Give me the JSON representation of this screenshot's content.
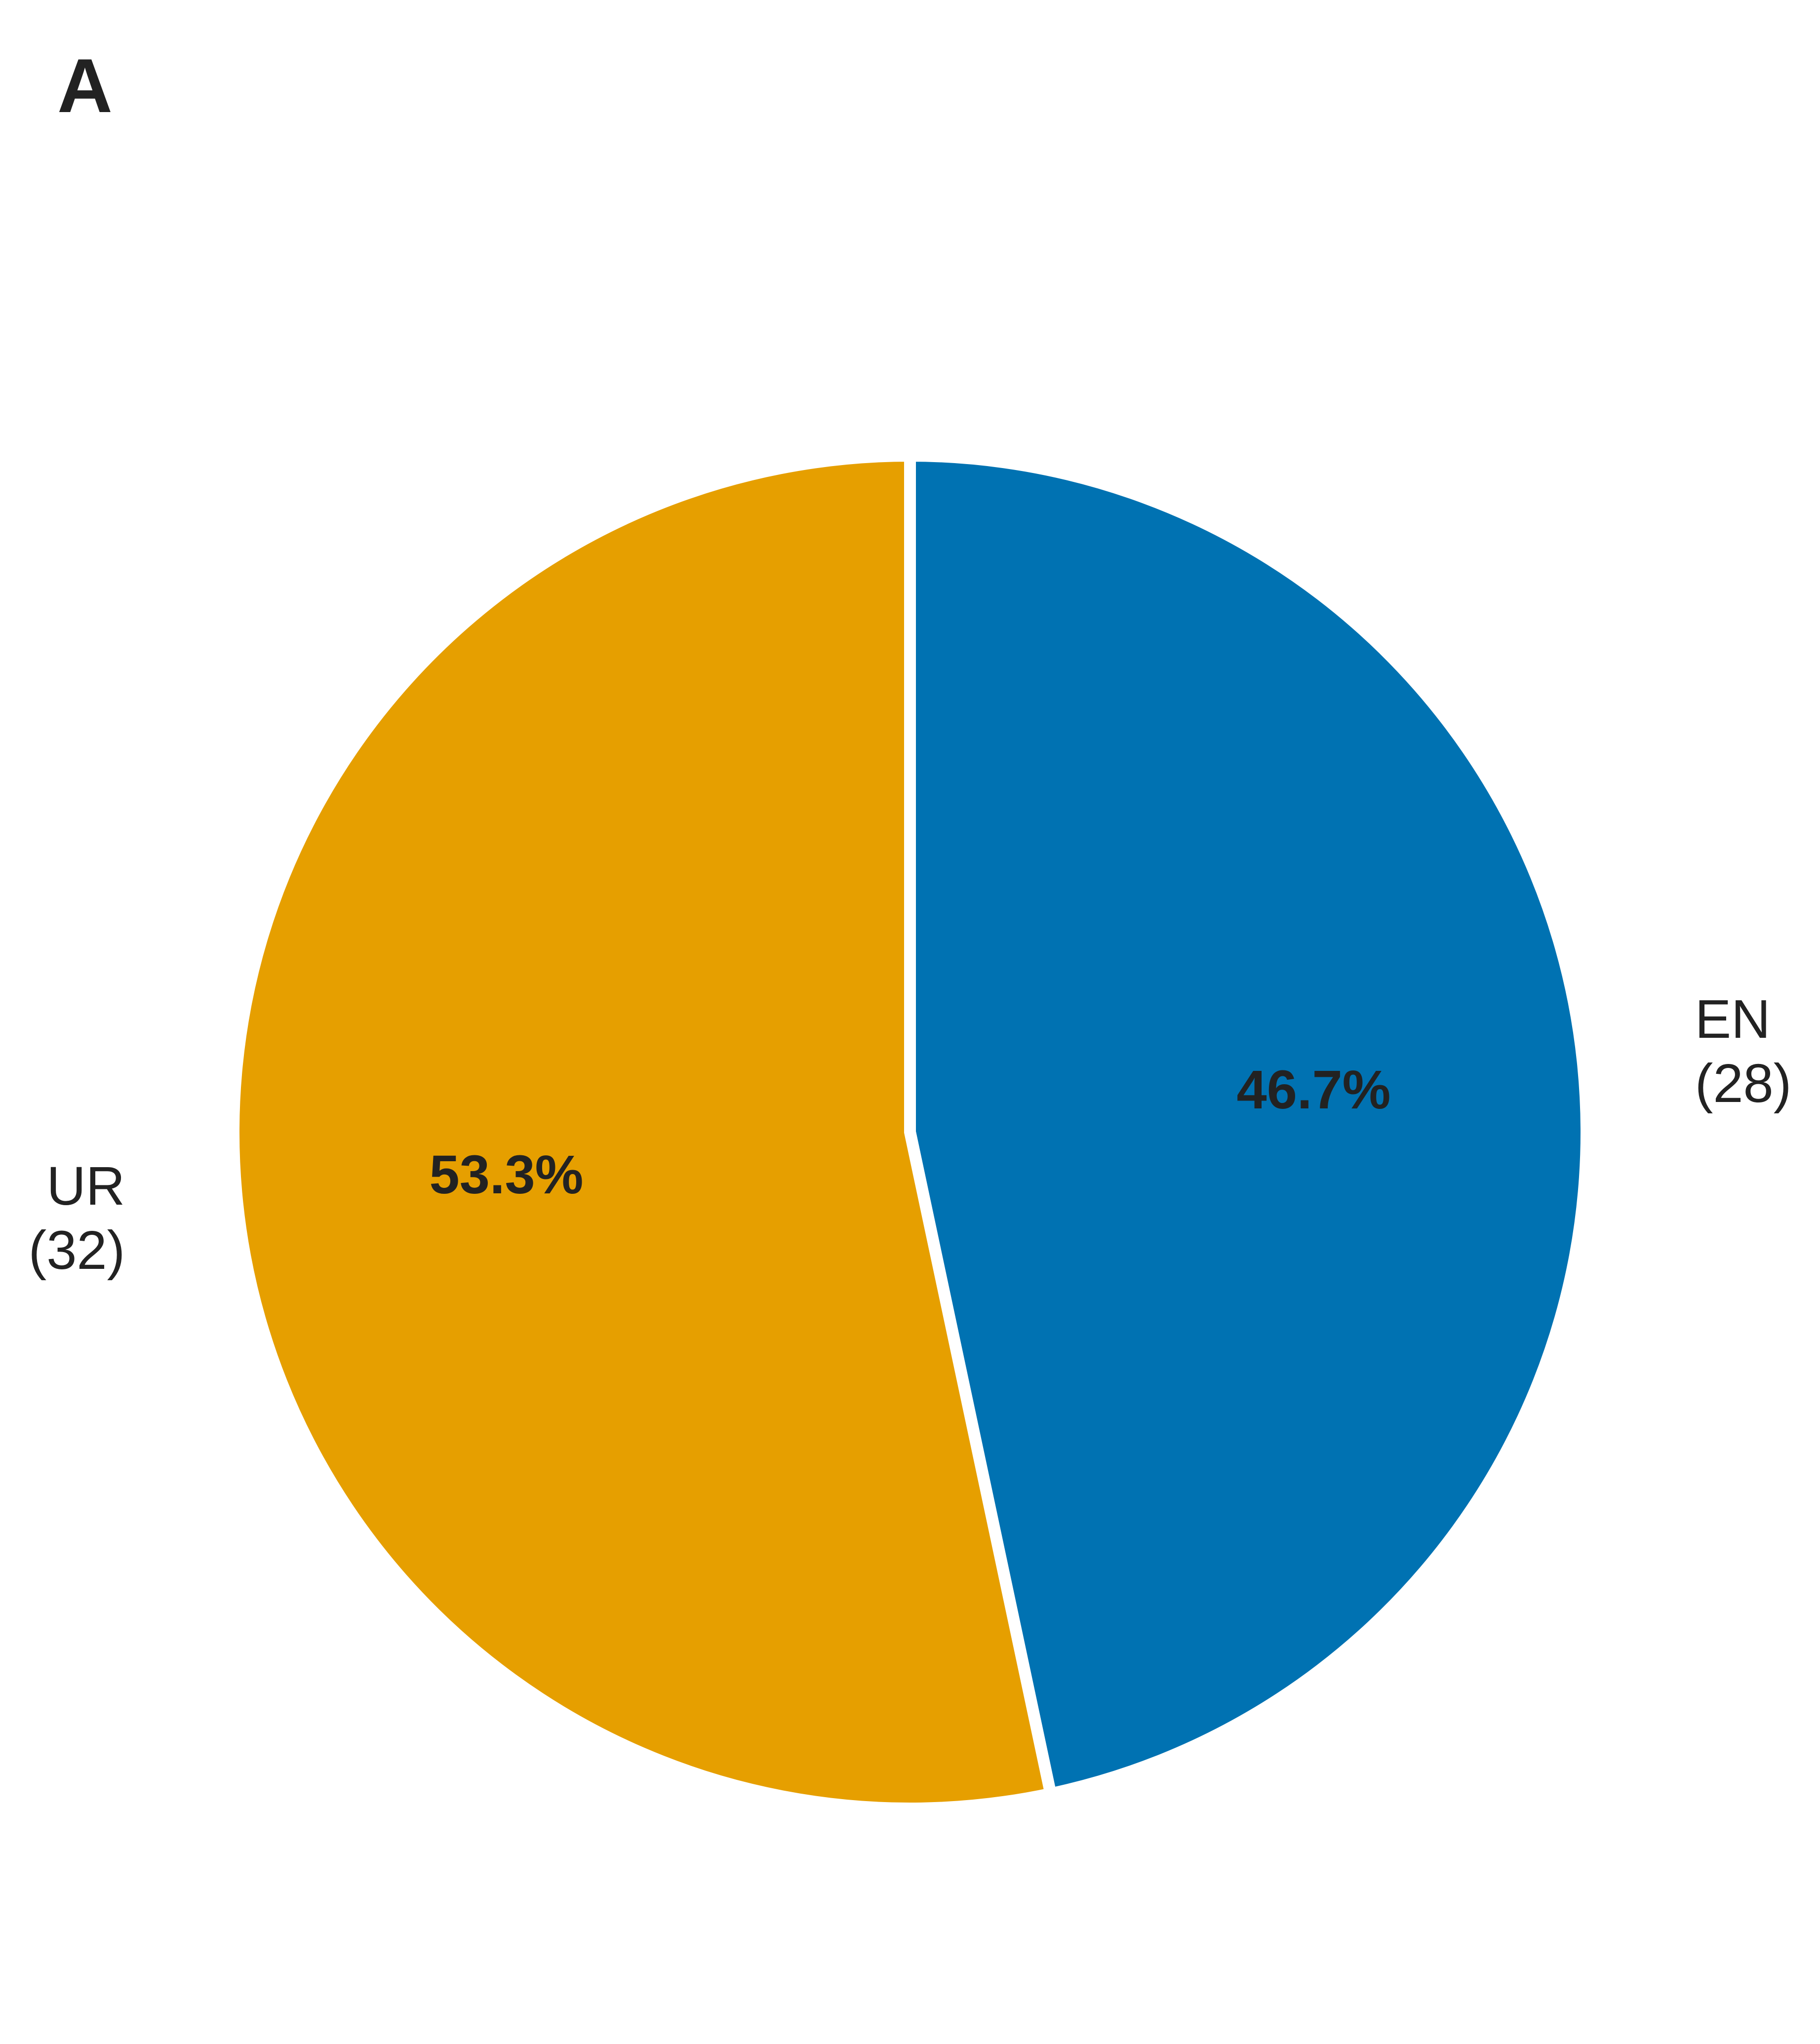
{
  "figure": {
    "panel_label": "A"
  },
  "chart_data": {
    "type": "pie",
    "title": "",
    "slices": [
      {
        "label": "EN",
        "count_label": "(28)",
        "count": 28,
        "percent_label": "46.7%",
        "value": 46.7,
        "color": "#0072b2"
      },
      {
        "label": "UR",
        "count_label": "(32)",
        "count": 32,
        "percent_label": "53.3%",
        "value": 53.3,
        "color": "#e69f00"
      }
    ],
    "start": "top",
    "direction": "clockwise",
    "slice_border_color": "#ffffff"
  }
}
